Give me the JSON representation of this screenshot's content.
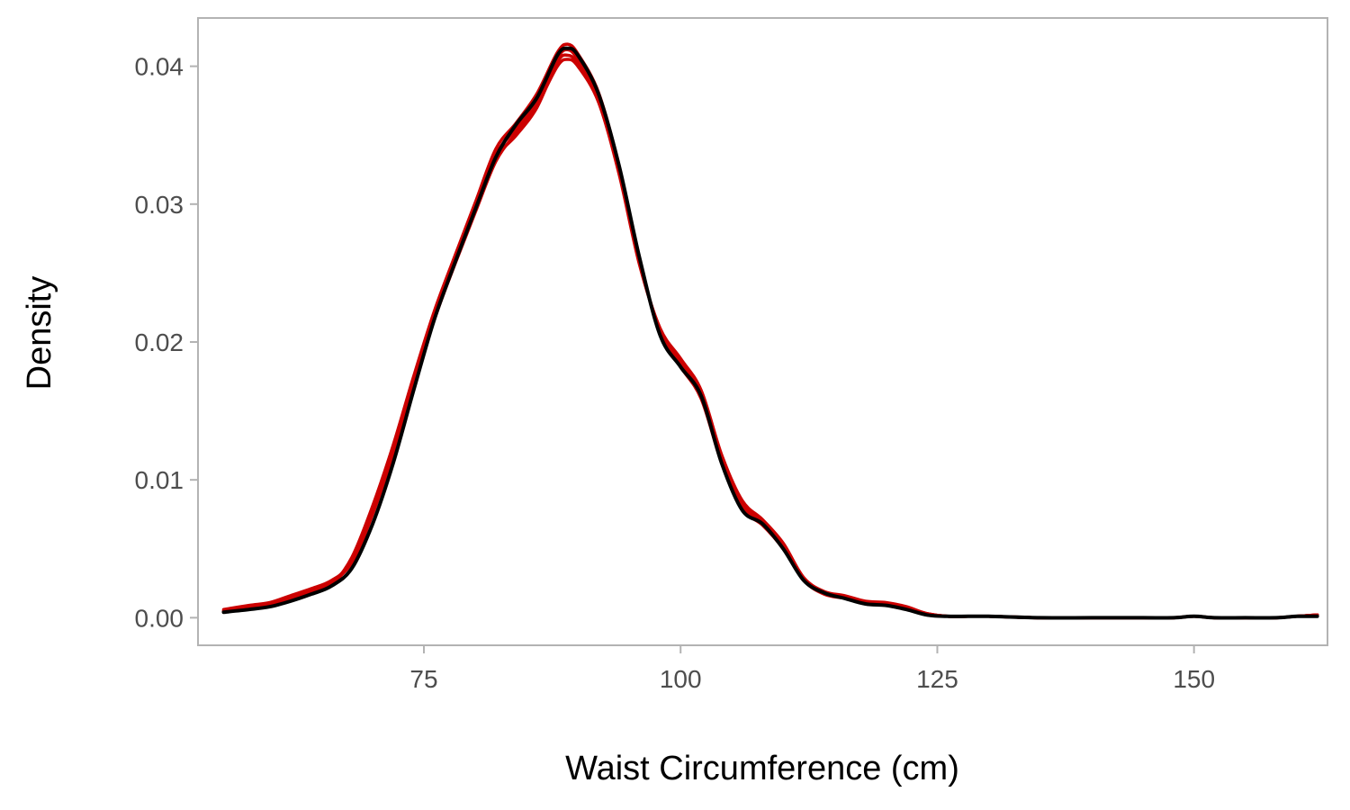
{
  "chart_data": {
    "type": "line",
    "title": "",
    "xlabel": "Waist Circumference (cm)",
    "ylabel": "Density",
    "xlim": [
      53,
      163
    ],
    "ylim": [
      -0.002,
      0.0435
    ],
    "x_ticks": [
      75,
      100,
      125,
      150
    ],
    "x_tick_labels": [
      "75",
      "100",
      "125",
      "150"
    ],
    "y_ticks": [
      0,
      0.01,
      0.02,
      0.03,
      0.04
    ],
    "y_tick_labels": [
      "0.00",
      "0.01",
      "0.02",
      "0.03",
      "0.04"
    ],
    "grid": false,
    "legend": "none",
    "x": [
      55.5,
      58,
      60,
      62,
      64,
      66,
      68,
      70,
      72,
      74,
      76,
      78,
      80,
      82,
      84,
      86,
      88,
      89,
      90,
      92,
      94,
      96,
      98,
      100,
      102,
      104,
      106,
      108,
      110,
      112,
      114,
      116,
      118,
      120,
      122,
      124,
      126,
      128,
      130,
      135,
      140,
      145,
      148,
      150,
      152,
      155,
      158,
      160,
      162
    ],
    "series": [
      {
        "color": "#cc0000",
        "y": [
          0.0005,
          0.0008,
          0.001,
          0.0014,
          0.002,
          0.0026,
          0.0042,
          0.0078,
          0.0122,
          0.0172,
          0.0219,
          0.0259,
          0.0298,
          0.0336,
          0.0355,
          0.0376,
          0.0406,
          0.0412,
          0.0405,
          0.0378,
          0.0325,
          0.0258,
          0.0208,
          0.0185,
          0.0162,
          0.0115,
          0.0082,
          0.0069,
          0.0052,
          0.0028,
          0.0018,
          0.0015,
          0.0011,
          0.001,
          0.0007,
          0.0003,
          0.0001,
          0.0001,
          0.0001,
          0.0,
          0.0,
          0.0,
          0.0,
          0.0001,
          0.0,
          0.0,
          0.0,
          0.0001,
          0.0002
        ]
      },
      {
        "color": "#cc0000",
        "y": [
          0.0006,
          0.0009,
          0.0011,
          0.0016,
          0.0021,
          0.0027,
          0.004,
          0.0075,
          0.0119,
          0.0169,
          0.0216,
          0.0256,
          0.0294,
          0.0331,
          0.0352,
          0.0372,
          0.04,
          0.0405,
          0.04,
          0.0374,
          0.0322,
          0.0256,
          0.021,
          0.0188,
          0.0165,
          0.0118,
          0.0085,
          0.0071,
          0.0054,
          0.0029,
          0.0019,
          0.0016,
          0.0012,
          0.0011,
          0.0008,
          0.0003,
          0.0001,
          0.0001,
          0.0001,
          0.0,
          0.0,
          0.0,
          0.0,
          0.0001,
          0.0,
          0.0,
          0.0,
          0.0001,
          0.0002
        ]
      },
      {
        "color": "#cc0000",
        "y": [
          0.0004,
          0.0007,
          0.0009,
          0.0013,
          0.0018,
          0.0024,
          0.0044,
          0.0081,
          0.0125,
          0.0175,
          0.0222,
          0.0262,
          0.0301,
          0.034,
          0.0359,
          0.038,
          0.041,
          0.0416,
          0.0409,
          0.0381,
          0.0328,
          0.026,
          0.0206,
          0.0182,
          0.0159,
          0.0112,
          0.0079,
          0.0067,
          0.005,
          0.0027,
          0.0017,
          0.0014,
          0.001,
          0.0009,
          0.0006,
          0.0002,
          0.0001,
          0.0001,
          0.0001,
          0.0,
          0.0,
          0.0,
          0.0,
          0.0001,
          0.0,
          0.0,
          0.0,
          0.0001,
          0.0002
        ]
      },
      {
        "color": "#cc0000",
        "y": [
          0.0005,
          0.0008,
          0.001,
          0.0015,
          0.0019,
          0.0025,
          0.0041,
          0.0076,
          0.012,
          0.017,
          0.022,
          0.0258,
          0.0296,
          0.0333,
          0.035,
          0.037,
          0.0403,
          0.0408,
          0.0402,
          0.0376,
          0.0324,
          0.0257,
          0.0209,
          0.0186,
          0.0163,
          0.0116,
          0.0083,
          0.007,
          0.0053,
          0.0028,
          0.0018,
          0.0015,
          0.0011,
          0.001,
          0.0007,
          0.0003,
          0.0001,
          0.0001,
          0.0001,
          0.0,
          0.0,
          0.0,
          0.0,
          0.0001,
          0.0,
          0.0,
          0.0,
          0.0001,
          0.0002
        ]
      },
      {
        "color": "#000000",
        "y": [
          0.0004,
          0.0006,
          0.0008,
          0.0012,
          0.0017,
          0.0023,
          0.0036,
          0.0068,
          0.0112,
          0.0165,
          0.0216,
          0.0257,
          0.0296,
          0.0334,
          0.0358,
          0.0377,
          0.0408,
          0.0413,
          0.0408,
          0.038,
          0.0328,
          0.0261,
          0.0205,
          0.0182,
          0.0161,
          0.0112,
          0.0078,
          0.0068,
          0.005,
          0.0027,
          0.0018,
          0.0014,
          0.001,
          0.0009,
          0.0006,
          0.0002,
          0.0001,
          0.0001,
          0.0001,
          0.0,
          0.0,
          0.0,
          0.0,
          0.0001,
          0.0,
          0.0,
          0.0,
          0.0001,
          0.0001
        ]
      }
    ]
  }
}
